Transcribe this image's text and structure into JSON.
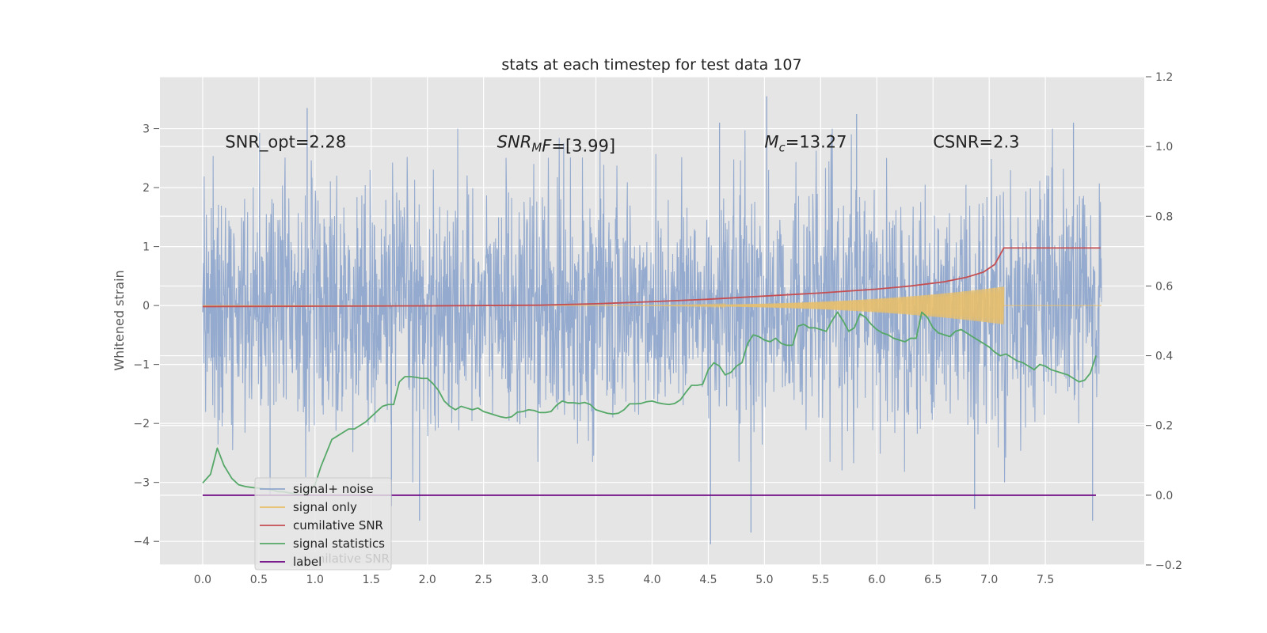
{
  "chart_data": {
    "type": "line",
    "title": "stats at each timestep for test data 107",
    "ylabel": "Whitened strain",
    "xlim": [
      -0.38,
      8.38
    ],
    "ylim": [
      -4.4,
      3.88
    ],
    "y2lim": [
      -0.2,
      1.2
    ],
    "xticks": [
      "0.0",
      "0.5",
      "1.0",
      "1.5",
      "2.0",
      "2.5",
      "3.0",
      "3.5",
      "4.0",
      "4.5",
      "5.0",
      "5.5",
      "6.0",
      "6.5",
      "7.0",
      "7.5"
    ],
    "xtick_values": [
      0,
      0.5,
      1,
      1.5,
      2,
      2.5,
      3,
      3.5,
      4,
      4.5,
      5,
      5.5,
      6,
      6.5,
      7,
      7.5
    ],
    "yticks": [
      "3",
      "2",
      "1",
      "0",
      "−1",
      "−2",
      "−3",
      "−4"
    ],
    "ytick_values": [
      3,
      2,
      1,
      0,
      -1,
      -2,
      -3,
      -4
    ],
    "y2ticks": [
      "1.2",
      "1.0",
      "0.8",
      "0.6",
      "0.4",
      "0.2",
      "0.0",
      "−0.2"
    ],
    "y2tick_values": [
      1.2,
      1.0,
      0.8,
      0.6,
      0.4,
      0.2,
      0.0,
      -0.2
    ],
    "grid": true,
    "legend_position": "lower-left",
    "annotations": [
      {
        "text": "SNR_opt=2.28",
        "x": 0.2,
        "y": 2.68
      },
      {
        "text": "SNR",
        "sub": "M",
        "suffix": "F=[3.99]",
        "italic": true,
        "x": 2.62,
        "y": 2.68
      },
      {
        "text": "M",
        "sub": "c",
        "suffix": "=13.27",
        "italic": true,
        "x": 5.0,
        "y": 2.68
      },
      {
        "text": "CSNR=2.3",
        "x": 6.5,
        "y": 2.68
      }
    ],
    "series": [
      {
        "name": "signal+ noise",
        "color": "#8fa6cc",
        "axis": "left",
        "x_range": [
          0,
          8.0
        ],
        "envelope_min": -2.4,
        "envelope_max": 2.6,
        "outliers": [
          {
            "x": 1.68,
            "y": -3.4
          },
          {
            "x": 1.93,
            "y": -3.65
          },
          {
            "x": 4.52,
            "y": -4.05
          },
          {
            "x": 4.88,
            "y": -3.85
          },
          {
            "x": 6.87,
            "y": -3.45
          },
          {
            "x": 7.92,
            "y": -3.65
          },
          {
            "x": 5.02,
            "y": 3.55
          },
          {
            "x": 0.93,
            "y": 3.35
          },
          {
            "x": 5.82,
            "y": 3.25
          },
          {
            "x": 4.6,
            "y": 3.1
          },
          {
            "x": 7.75,
            "y": 3.1
          },
          {
            "x": 0.6,
            "y": -3.2
          }
        ]
      },
      {
        "name": "signal only",
        "color": "#e8bf6a",
        "axis": "left",
        "chirp": {
          "start": 3.0,
          "end": 7.13,
          "final_amp": 0.32
        }
      },
      {
        "name": "cumilative SNR",
        "color": "#c44e52",
        "axis": "right",
        "x": [
          0,
          1,
          2,
          3,
          3.5,
          4,
          4.5,
          5,
          5.5,
          6,
          6.3,
          6.6,
          6.8,
          6.95,
          7.05,
          7.13,
          7.99
        ],
        "y": [
          0.541,
          0.542,
          0.543,
          0.545,
          0.549,
          0.555,
          0.562,
          0.571,
          0.58,
          0.591,
          0.6,
          0.612,
          0.625,
          0.64,
          0.662,
          0.709,
          0.709
        ]
      },
      {
        "name": "signal statistics",
        "color": "#55a868",
        "axis": "right",
        "x": [
          0,
          0.07,
          0.13,
          0.19,
          0.26,
          0.32,
          0.38,
          0.44,
          0.5,
          0.56,
          0.62,
          0.67,
          0.72,
          0.8,
          0.9,
          1,
          1.05,
          1.1,
          1.15,
          1.2,
          1.25,
          1.3,
          1.35,
          1.4,
          1.45,
          1.5,
          1.55,
          1.6,
          1.65,
          1.7,
          1.75,
          1.8,
          1.85,
          1.9,
          1.95,
          2,
          2.05,
          2.1,
          2.15,
          2.2,
          2.25,
          2.3,
          2.35,
          2.4,
          2.45,
          2.5,
          2.55,
          2.6,
          2.65,
          2.7,
          2.75,
          2.8,
          2.85,
          2.9,
          2.95,
          3,
          3.05,
          3.1,
          3.15,
          3.2,
          3.25,
          3.3,
          3.35,
          3.4,
          3.45,
          3.5,
          3.55,
          3.6,
          3.65,
          3.7,
          3.75,
          3.8,
          3.85,
          3.9,
          3.95,
          4,
          4.05,
          4.1,
          4.15,
          4.2,
          4.25,
          4.3,
          4.35,
          4.4,
          4.45,
          4.5,
          4.55,
          4.6,
          4.65,
          4.7,
          4.75,
          4.8,
          4.85,
          4.9,
          4.95,
          5,
          5.05,
          5.1,
          5.15,
          5.2,
          5.25,
          5.3,
          5.35,
          5.4,
          5.45,
          5.5,
          5.55,
          5.6,
          5.65,
          5.7,
          5.75,
          5.8,
          5.85,
          5.9,
          5.95,
          6,
          6.05,
          6.1,
          6.15,
          6.2,
          6.25,
          6.3,
          6.35,
          6.4,
          6.45,
          6.5,
          6.55,
          6.6,
          6.65,
          6.7,
          6.75,
          6.8,
          6.85,
          6.9,
          6.95,
          7,
          7.05,
          7.1,
          7.15,
          7.2,
          7.25,
          7.3,
          7.35,
          7.4,
          7.45,
          7.5,
          7.55,
          7.6,
          7.65,
          7.7,
          7.75,
          7.8,
          7.85,
          7.9,
          7.95
        ],
        "y": [
          0.035,
          0.06,
          0.135,
          0.085,
          0.048,
          0.03,
          0.025,
          0.022,
          0.02,
          0.018,
          0.015,
          0.01,
          0.01,
          0.005,
          0.0,
          0.03,
          0.08,
          0.12,
          0.16,
          0.17,
          0.18,
          0.19,
          0.19,
          0.2,
          0.21,
          0.225,
          0.24,
          0.255,
          0.26,
          0.26,
          0.325,
          0.34,
          0.34,
          0.338,
          0.335,
          0.335,
          0.32,
          0.3,
          0.27,
          0.255,
          0.245,
          0.255,
          0.25,
          0.245,
          0.25,
          0.24,
          0.235,
          0.23,
          0.225,
          0.222,
          0.225,
          0.238,
          0.24,
          0.245,
          0.243,
          0.237,
          0.237,
          0.24,
          0.258,
          0.27,
          0.265,
          0.265,
          0.263,
          0.266,
          0.26,
          0.245,
          0.24,
          0.235,
          0.233,
          0.235,
          0.245,
          0.262,
          0.262,
          0.263,
          0.268,
          0.27,
          0.265,
          0.262,
          0.26,
          0.263,
          0.273,
          0.295,
          0.315,
          0.315,
          0.318,
          0.36,
          0.38,
          0.37,
          0.345,
          0.352,
          0.37,
          0.38,
          0.435,
          0.46,
          0.455,
          0.445,
          0.44,
          0.45,
          0.435,
          0.43,
          0.43,
          0.485,
          0.49,
          0.48,
          0.48,
          0.475,
          0.47,
          0.5,
          0.525,
          0.5,
          0.47,
          0.48,
          0.52,
          0.51,
          0.49,
          0.475,
          0.465,
          0.46,
          0.45,
          0.445,
          0.44,
          0.45,
          0.45,
          0.525,
          0.51,
          0.48,
          0.465,
          0.46,
          0.455,
          0.47,
          0.475,
          0.465,
          0.455,
          0.445,
          0.435,
          0.425,
          0.41,
          0.4,
          0.405,
          0.395,
          0.385,
          0.38,
          0.37,
          0.36,
          0.375,
          0.37,
          0.36,
          0.355,
          0.35,
          0.345,
          0.335,
          0.325,
          0.33,
          0.35,
          0.4
        ]
      },
      {
        "name": "label",
        "color": "#6a0080",
        "axis": "right",
        "x": [
          0,
          7.95
        ],
        "y": [
          0.0,
          0.0
        ]
      }
    ],
    "legend_overlap_text": "cumilative SNR"
  }
}
